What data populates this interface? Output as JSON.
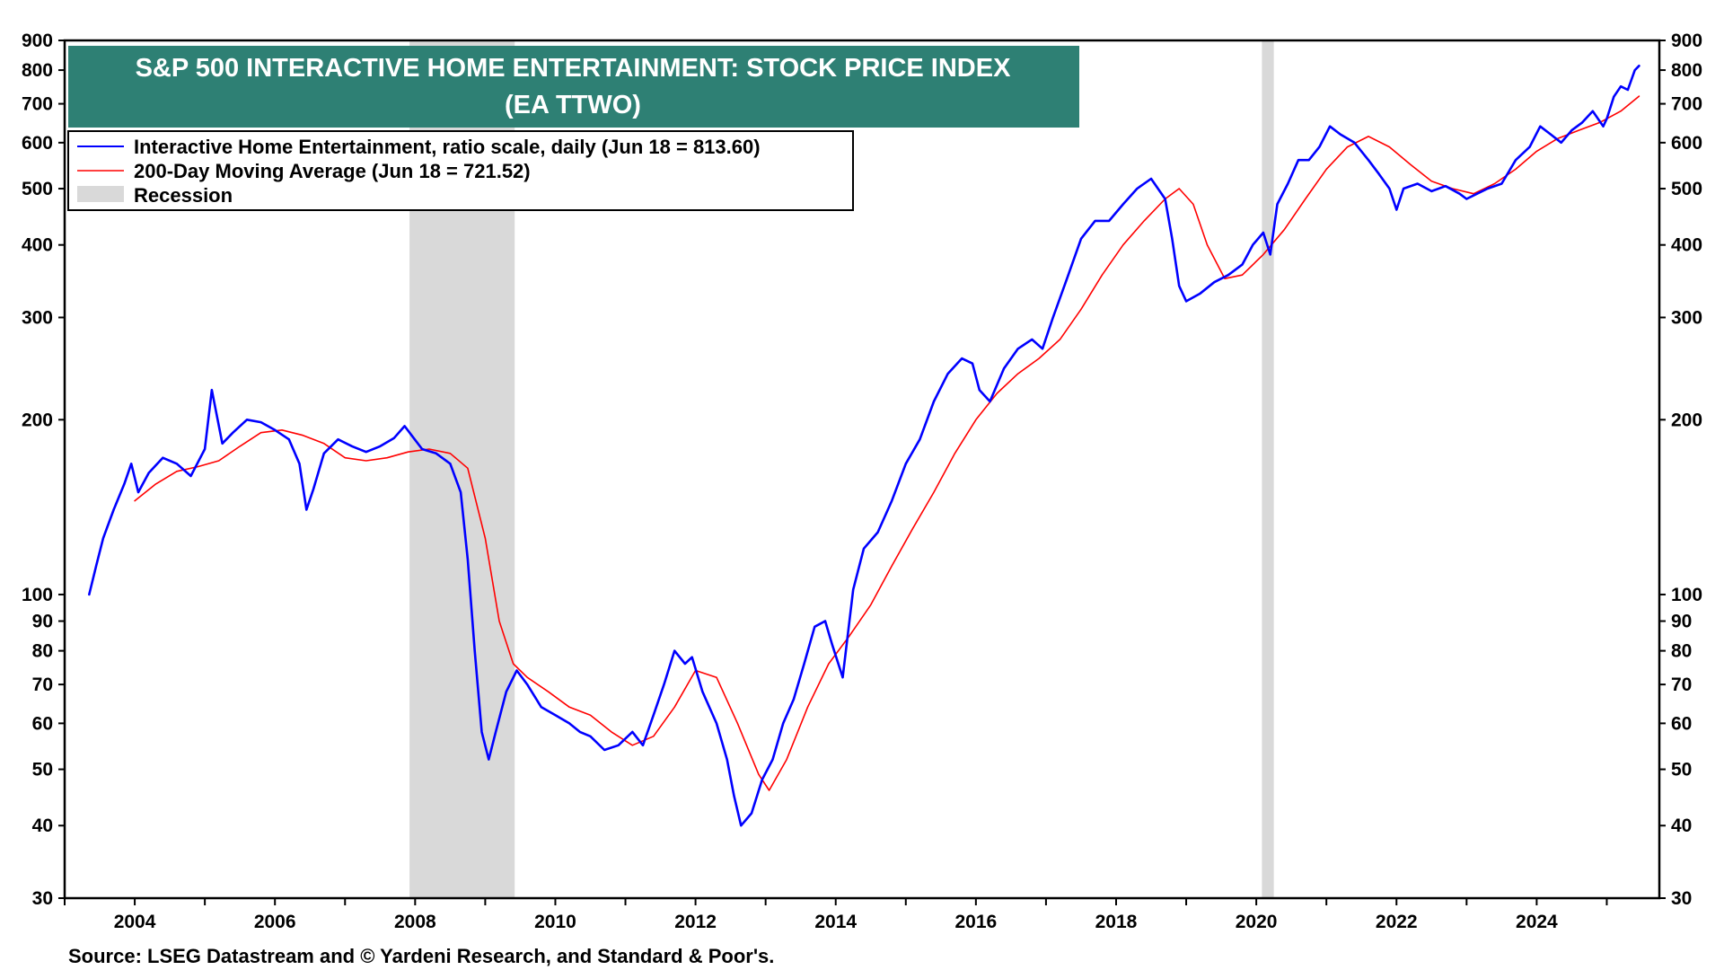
{
  "chart_data": {
    "type": "line",
    "title": "S&P 500 INTERACTIVE HOME ENTERTAINMENT: STOCK PRICE INDEX",
    "subtitle": "(EA TTWO)",
    "y_scale": "log",
    "ylim": [
      30,
      900
    ],
    "xlim": [
      2003.0,
      2025.75
    ],
    "y_ticks": [
      30,
      40,
      50,
      60,
      70,
      80,
      90,
      100,
      200,
      300,
      400,
      500,
      600,
      700,
      800,
      900
    ],
    "x_ticks": [
      2004,
      2006,
      2008,
      2010,
      2012,
      2014,
      2016,
      2018,
      2020,
      2022,
      2024
    ],
    "grid": false,
    "legend_position": "top-left",
    "legend": {
      "series_label": "Interactive Home Entertainment, ratio scale, daily (Jun 18 = 813.60)",
      "ma_label": "200-Day Moving Average (Jun 18 = 721.52)",
      "recession_label": "Recession"
    },
    "recessions": [
      {
        "start": 2007.92,
        "end": 2009.42
      },
      {
        "start": 2020.08,
        "end": 2020.25
      }
    ],
    "series": [
      {
        "name": "Interactive Home Entertainment",
        "color": "#0000ff",
        "x": [
          2003.35,
          2003.45,
          2003.55,
          2003.7,
          2003.85,
          2003.95,
          2004.05,
          2004.2,
          2004.4,
          2004.6,
          2004.8,
          2005.0,
          2005.1,
          2005.25,
          2005.4,
          2005.6,
          2005.8,
          2006.0,
          2006.2,
          2006.35,
          2006.45,
          2006.55,
          2006.7,
          2006.9,
          2007.1,
          2007.3,
          2007.5,
          2007.7,
          2007.85,
          2007.95,
          2008.1,
          2008.3,
          2008.5,
          2008.65,
          2008.75,
          2008.85,
          2008.95,
          2009.05,
          2009.15,
          2009.3,
          2009.45,
          2009.6,
          2009.8,
          2010.0,
          2010.2,
          2010.35,
          2010.5,
          2010.7,
          2010.9,
          2011.1,
          2011.25,
          2011.4,
          2011.55,
          2011.7,
          2011.85,
          2011.95,
          2012.1,
          2012.3,
          2012.45,
          2012.55,
          2012.65,
          2012.8,
          2012.95,
          2013.1,
          2013.25,
          2013.4,
          2013.55,
          2013.7,
          2013.85,
          2013.95,
          2014.1,
          2014.25,
          2014.4,
          2014.6,
          2014.8,
          2015.0,
          2015.2,
          2015.4,
          2015.6,
          2015.8,
          2015.95,
          2016.05,
          2016.2,
          2016.4,
          2016.6,
          2016.8,
          2016.95,
          2017.1,
          2017.3,
          2017.5,
          2017.7,
          2017.9,
          2018.1,
          2018.3,
          2018.5,
          2018.7,
          2018.8,
          2018.9,
          2019.0,
          2019.2,
          2019.4,
          2019.6,
          2019.8,
          2019.95,
          2020.1,
          2020.2,
          2020.3,
          2020.45,
          2020.6,
          2020.75,
          2020.9,
          2021.05,
          2021.2,
          2021.4,
          2021.6,
          2021.75,
          2021.9,
          2022.0,
          2022.1,
          2022.3,
          2022.5,
          2022.7,
          2022.9,
          2023.0,
          2023.15,
          2023.3,
          2023.5,
          2023.7,
          2023.9,
          2024.05,
          2024.2,
          2024.35,
          2024.5,
          2024.65,
          2024.8,
          2024.95,
          2025.0,
          2025.1,
          2025.2,
          2025.3,
          2025.4,
          2025.46
        ],
        "values": [
          100,
          112,
          125,
          140,
          155,
          168,
          150,
          162,
          172,
          168,
          160,
          178,
          225,
          182,
          190,
          200,
          198,
          192,
          185,
          168,
          140,
          152,
          175,
          185,
          180,
          176,
          180,
          186,
          195,
          188,
          178,
          175,
          168,
          150,
          115,
          80,
          58,
          52,
          58,
          68,
          74,
          70,
          64,
          62,
          60,
          58,
          57,
          54,
          55,
          58,
          55,
          62,
          70,
          80,
          76,
          78,
          68,
          60,
          52,
          45,
          40,
          42,
          48,
          52,
          60,
          66,
          76,
          88,
          90,
          82,
          72,
          102,
          120,
          128,
          145,
          168,
          185,
          215,
          240,
          255,
          250,
          225,
          215,
          245,
          265,
          275,
          265,
          300,
          350,
          410,
          440,
          440,
          470,
          500,
          520,
          480,
          410,
          340,
          320,
          330,
          345,
          355,
          370,
          400,
          420,
          385,
          470,
          510,
          560,
          560,
          590,
          640,
          620,
          600,
          560,
          530,
          500,
          460,
          500,
          510,
          495,
          505,
          490,
          480,
          490,
          500,
          510,
          560,
          590,
          640,
          620,
          600,
          630,
          650,
          680,
          640,
          660,
          720,
          750,
          740,
          800,
          813.6
        ]
      },
      {
        "name": "200-Day Moving Average",
        "color": "#ff0000",
        "x": [
          2004.0,
          2004.3,
          2004.6,
          2004.9,
          2005.2,
          2005.5,
          2005.8,
          2006.1,
          2006.4,
          2006.7,
          2007.0,
          2007.3,
          2007.6,
          2007.9,
          2008.2,
          2008.5,
          2008.75,
          2009.0,
          2009.2,
          2009.4,
          2009.6,
          2009.9,
          2010.2,
          2010.5,
          2010.8,
          2011.1,
          2011.4,
          2011.7,
          2012.0,
          2012.3,
          2012.6,
          2012.9,
          2013.05,
          2013.3,
          2013.6,
          2013.9,
          2014.2,
          2014.5,
          2014.8,
          2015.1,
          2015.4,
          2015.7,
          2016.0,
          2016.3,
          2016.6,
          2016.9,
          2017.2,
          2017.5,
          2017.8,
          2018.1,
          2018.4,
          2018.7,
          2018.9,
          2019.1,
          2019.3,
          2019.55,
          2019.8,
          2020.1,
          2020.4,
          2020.7,
          2021.0,
          2021.3,
          2021.6,
          2021.9,
          2022.2,
          2022.5,
          2022.8,
          2023.1,
          2023.4,
          2023.7,
          2024.0,
          2024.3,
          2024.6,
          2024.9,
          2025.2,
          2025.46
        ],
        "values": [
          145,
          155,
          163,
          166,
          170,
          180,
          190,
          192,
          188,
          182,
          172,
          170,
          172,
          176,
          178,
          175,
          165,
          125,
          90,
          76,
          72,
          68,
          64,
          62,
          58,
          55,
          57,
          64,
          74,
          72,
          60,
          49,
          46,
          52,
          64,
          76,
          85,
          96,
          112,
          130,
          150,
          175,
          200,
          222,
          240,
          255,
          275,
          310,
          355,
          400,
          440,
          480,
          500,
          470,
          400,
          350,
          355,
          385,
          425,
          480,
          540,
          590,
          615,
          590,
          550,
          515,
          500,
          490,
          510,
          540,
          580,
          610,
          630,
          650,
          680,
          721.52
        ]
      }
    ],
    "source": "Source: LSEG Datastream and © Yardeni Research, and Standard & Poor's."
  }
}
